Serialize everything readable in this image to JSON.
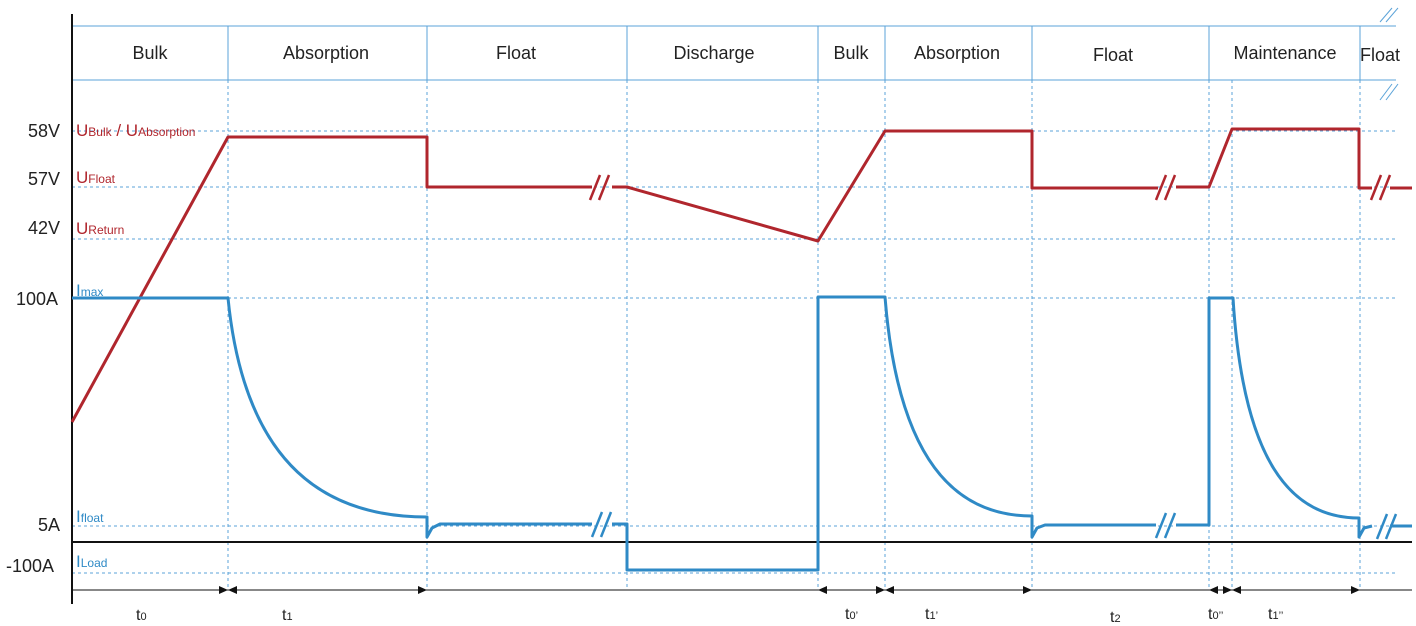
{
  "phases": [
    {
      "label": "Bulk"
    },
    {
      "label": "Absorption"
    },
    {
      "label": "Float"
    },
    {
      "label": "Discharge"
    },
    {
      "label": "Bulk"
    },
    {
      "label": "Absorption"
    },
    {
      "label": "Float"
    },
    {
      "label": "Maintenance"
    },
    {
      "label": "Float"
    }
  ],
  "y_labels": {
    "v58": "58V",
    "v57": "57V",
    "v42": "42V",
    "a100": "100A",
    "a5": "5A",
    "am100": "-100A"
  },
  "voltage_labels": {
    "bulk_abs_main": "U",
    "bulk_sub": "Bulk",
    "sep": " / U",
    "abs_sub": "Absorption",
    "float_main": "U",
    "float_sub": "Float",
    "return_main": "U",
    "return_sub": "Return"
  },
  "current_labels": {
    "max_main": "I",
    "max_sub": "max",
    "float_main": "I",
    "float_sub": "float",
    "load_main": "I",
    "load_sub": "Load"
  },
  "time_labels": [
    {
      "main": "t",
      "sub": "0"
    },
    {
      "main": "t",
      "sub": "1"
    },
    {
      "main": "t",
      "sub": "0’"
    },
    {
      "main": "t",
      "sub": "1’"
    },
    {
      "main": "t",
      "sub": "2"
    },
    {
      "main": "t",
      "sub": "0’’"
    },
    {
      "main": "t",
      "sub": "1’’"
    }
  ],
  "colors": {
    "voltage": "#b0262d",
    "current": "#2f8ac6",
    "grid": "#5ba3d8",
    "axis": "#111111"
  }
}
